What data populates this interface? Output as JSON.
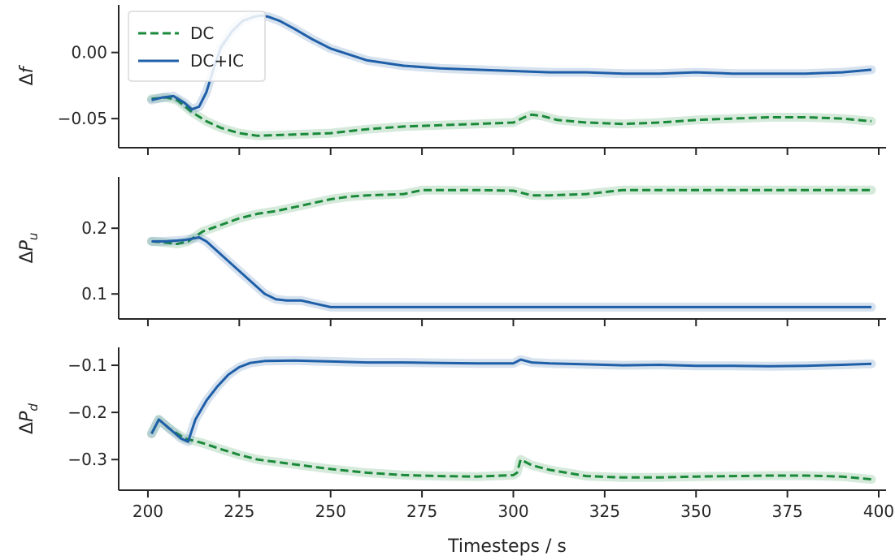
{
  "chart_data": [
    {
      "type": "line",
      "ylabel_base": "Δ",
      "ylabel_var": "f",
      "ylabel_sub": "",
      "ylim": [
        -0.072,
        0.036
      ],
      "xlim": [
        192,
        402
      ],
      "yticks": [
        0.0,
        -0.05
      ],
      "ytick_labels": [
        "0.00",
        "−0.05"
      ],
      "xticks": [
        200,
        225,
        250,
        275,
        300,
        325,
        350,
        375,
        400
      ],
      "legend": {
        "placement": "upper-left",
        "entries": [
          "DC",
          "DC+IC"
        ]
      },
      "series": [
        {
          "name": "DC",
          "color": "#1a8a3a",
          "style": "dashed",
          "x": [
            201,
            205,
            208,
            212,
            216,
            220,
            225,
            230,
            240,
            250,
            260,
            270,
            280,
            290,
            300,
            303,
            305,
            308,
            312,
            320,
            330,
            340,
            350,
            360,
            370,
            380,
            390,
            398
          ],
          "y": [
            -0.035,
            -0.034,
            -0.036,
            -0.045,
            -0.052,
            -0.057,
            -0.061,
            -0.063,
            -0.062,
            -0.061,
            -0.058,
            -0.056,
            -0.055,
            -0.054,
            -0.053,
            -0.049,
            -0.047,
            -0.048,
            -0.051,
            -0.053,
            -0.054,
            -0.053,
            -0.051,
            -0.05,
            -0.049,
            -0.049,
            -0.05,
            -0.052
          ]
        },
        {
          "name": "DC+IC",
          "color": "#1f5fa8",
          "style": "solid",
          "x": [
            201,
            204,
            207,
            210,
            212,
            214,
            216,
            218,
            220,
            223,
            226,
            229,
            231,
            233,
            236,
            240,
            245,
            250,
            260,
            270,
            280,
            290,
            300,
            310,
            320,
            330,
            340,
            350,
            360,
            370,
            380,
            390,
            398
          ],
          "y": [
            -0.036,
            -0.034,
            -0.033,
            -0.038,
            -0.043,
            -0.041,
            -0.03,
            -0.012,
            0.004,
            0.016,
            0.024,
            0.027,
            0.028,
            0.027,
            0.024,
            0.018,
            0.01,
            0.003,
            -0.006,
            -0.01,
            -0.012,
            -0.013,
            -0.014,
            -0.015,
            -0.015,
            -0.016,
            -0.016,
            -0.015,
            -0.016,
            -0.016,
            -0.016,
            -0.015,
            -0.013
          ]
        }
      ]
    },
    {
      "type": "line",
      "ylabel_base": "Δ",
      "ylabel_var": "P",
      "ylabel_sub": "u",
      "ylim": [
        0.062,
        0.278
      ],
      "xlim": [
        192,
        402
      ],
      "yticks": [
        0.2,
        0.1
      ],
      "ytick_labels": [
        "0.2",
        "0.1"
      ],
      "xticks": [
        200,
        225,
        250,
        275,
        300,
        325,
        350,
        375,
        400
      ],
      "series": [
        {
          "name": "DC",
          "color": "#1a8a3a",
          "style": "dashed",
          "x": [
            201,
            205,
            208,
            211,
            215,
            220,
            225,
            230,
            235,
            240,
            245,
            250,
            255,
            260,
            265,
            270,
            275,
            280,
            290,
            300,
            305,
            310,
            320,
            330,
            340,
            360,
            380,
            398
          ],
          "y": [
            0.18,
            0.178,
            0.176,
            0.18,
            0.195,
            0.205,
            0.215,
            0.222,
            0.226,
            0.232,
            0.238,
            0.244,
            0.248,
            0.25,
            0.251,
            0.252,
            0.258,
            0.258,
            0.258,
            0.257,
            0.25,
            0.25,
            0.252,
            0.258,
            0.258,
            0.258,
            0.258,
            0.258
          ]
        },
        {
          "name": "DC+IC",
          "color": "#1f5fa8",
          "style": "solid",
          "x": [
            201,
            205,
            210,
            214,
            216,
            220,
            224,
            228,
            232,
            235,
            238,
            242,
            250,
            260,
            300,
            340,
            380,
            398
          ],
          "y": [
            0.18,
            0.18,
            0.182,
            0.186,
            0.18,
            0.16,
            0.14,
            0.12,
            0.1,
            0.092,
            0.09,
            0.09,
            0.08,
            0.08,
            0.08,
            0.08,
            0.08,
            0.08
          ]
        }
      ]
    },
    {
      "type": "line",
      "ylabel_base": "Δ",
      "ylabel_var": "P",
      "ylabel_sub": "d",
      "ylim": [
        -0.365,
        -0.062
      ],
      "xlim": [
        192,
        402
      ],
      "yticks": [
        -0.1,
        -0.2,
        -0.3
      ],
      "ytick_labels": [
        "−0.1",
        "−0.2",
        "−0.3"
      ],
      "xticks": [
        200,
        225,
        250,
        275,
        300,
        325,
        350,
        375,
        400
      ],
      "xtick_labels": [
        "200",
        "225",
        "250",
        "275",
        "300",
        "325",
        "350",
        "375",
        "400"
      ],
      "xlabel": "Timesteps / s",
      "series": [
        {
          "name": "DC",
          "color": "#1a8a3a",
          "style": "dashed",
          "x": [
            201,
            203,
            206,
            210,
            215,
            220,
            225,
            230,
            240,
            250,
            260,
            270,
            280,
            290,
            300,
            301,
            302,
            305,
            310,
            320,
            330,
            340,
            350,
            360,
            370,
            380,
            390,
            398
          ],
          "y": [
            -0.245,
            -0.215,
            -0.235,
            -0.255,
            -0.265,
            -0.278,
            -0.29,
            -0.3,
            -0.31,
            -0.32,
            -0.328,
            -0.333,
            -0.335,
            -0.336,
            -0.333,
            -0.328,
            -0.3,
            -0.312,
            -0.322,
            -0.335,
            -0.338,
            -0.338,
            -0.336,
            -0.335,
            -0.334,
            -0.334,
            -0.336,
            -0.342
          ]
        },
        {
          "name": "DC+IC",
          "color": "#1f5fa8",
          "style": "solid",
          "x": [
            201,
            203,
            206,
            209,
            211,
            213,
            216,
            219,
            222,
            225,
            228,
            232,
            240,
            250,
            260,
            270,
            280,
            290,
            300,
            302,
            305,
            310,
            320,
            330,
            340,
            350,
            360,
            370,
            380,
            390,
            398
          ],
          "y": [
            -0.245,
            -0.215,
            -0.235,
            -0.255,
            -0.262,
            -0.215,
            -0.175,
            -0.145,
            -0.12,
            -0.104,
            -0.095,
            -0.091,
            -0.09,
            -0.092,
            -0.094,
            -0.094,
            -0.095,
            -0.096,
            -0.096,
            -0.088,
            -0.094,
            -0.096,
            -0.098,
            -0.1,
            -0.099,
            -0.101,
            -0.101,
            -0.102,
            -0.101,
            -0.099,
            -0.097
          ]
        }
      ]
    }
  ]
}
